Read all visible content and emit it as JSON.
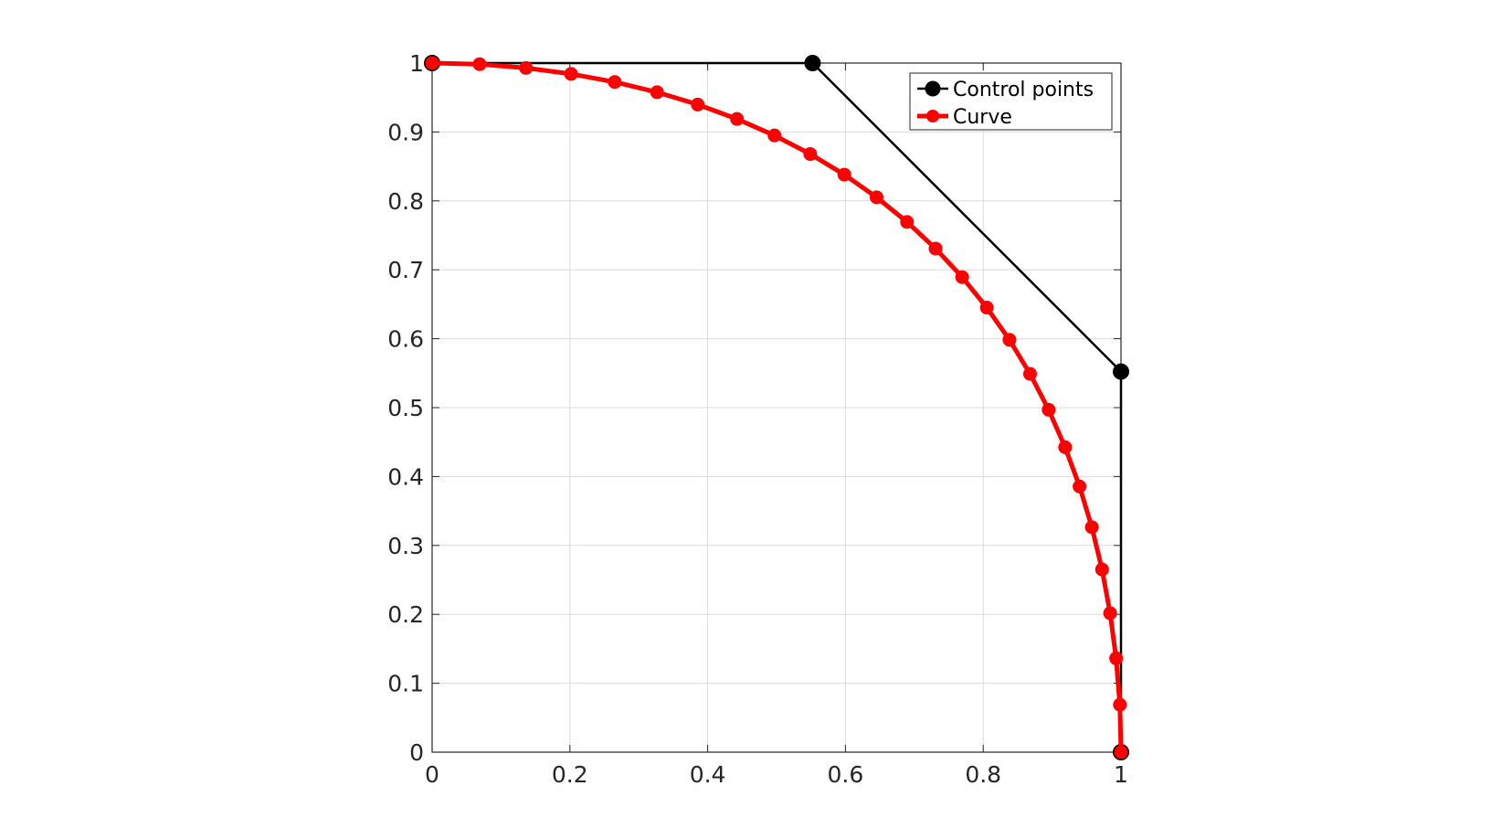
{
  "chart_data": {
    "type": "line",
    "title": "",
    "xlabel": "",
    "ylabel": "",
    "xlim": [
      0,
      1
    ],
    "ylim": [
      0,
      1
    ],
    "xticks": [
      0,
      0.2,
      0.4,
      0.6,
      0.8,
      1
    ],
    "yticks": [
      0,
      0.1,
      0.2,
      0.3,
      0.4,
      0.5,
      0.6,
      0.7,
      0.8,
      0.9,
      1
    ],
    "xtick_labels": [
      "0",
      "0.2",
      "0.4",
      "0.6",
      "0.8",
      "1"
    ],
    "ytick_labels": [
      "0",
      "0.1",
      "0.2",
      "0.3",
      "0.4",
      "0.5",
      "0.6",
      "0.7",
      "0.8",
      "0.9",
      "1"
    ],
    "grid": true,
    "box": true,
    "legend_position": "top-right",
    "series": [
      {
        "name": "Control points",
        "color": "#000000",
        "marker": "filled-circle",
        "x": [
          0,
          0.5523,
          1,
          1
        ],
        "y": [
          1,
          1,
          0.5523,
          0
        ]
      },
      {
        "name": "Curve",
        "color": "#ff0000",
        "marker": "filled-circle",
        "x": [
          0,
          0.0689,
          0.1362,
          0.2017,
          0.2651,
          0.3265,
          0.3856,
          0.4425,
          0.4969,
          0.5489,
          0.5984,
          0.6452,
          0.6894,
          0.7308,
          0.7694,
          0.8052,
          0.8381,
          0.868,
          0.895,
          0.9189,
          0.9398,
          0.9577,
          0.9725,
          0.9842,
          0.9929,
          0.9984,
          1.0
        ],
        "y": [
          1.0,
          0.9984,
          0.9929,
          0.9842,
          0.9725,
          0.9577,
          0.9398,
          0.9189,
          0.895,
          0.868,
          0.8381,
          0.8052,
          0.7694,
          0.7308,
          0.6894,
          0.6452,
          0.5984,
          0.5489,
          0.4969,
          0.4425,
          0.3856,
          0.3265,
          0.2651,
          0.2017,
          0.1362,
          0.0689,
          0.0
        ]
      }
    ]
  }
}
